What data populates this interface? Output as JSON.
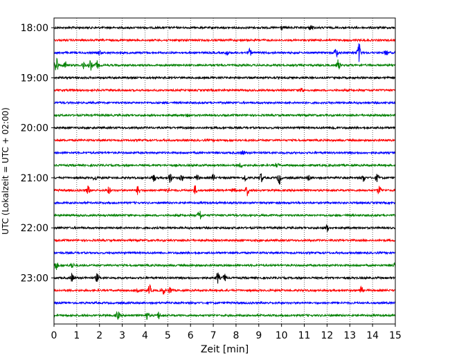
{
  "chart_data": {
    "type": "line",
    "title": "",
    "xlabel": "Zeit  [min]",
    "ylabel": "UTC (Lokalzeit = UTC + 02:00)",
    "xlim": [
      0,
      15
    ],
    "x_ticks": [
      0,
      1,
      2,
      3,
      4,
      5,
      6,
      7,
      8,
      9,
      10,
      11,
      12,
      13,
      14,
      15
    ],
    "y_tick_labels": [
      "18:00",
      "19:00",
      "20:00",
      "21:00",
      "22:00",
      "23:00"
    ],
    "grid": "vertical-dotted",
    "color_cycle": [
      "#000000",
      "#ff0000",
      "#0000ff",
      "#008000"
    ],
    "series": [
      {
        "start": "18:00",
        "bursts": [
          [
            10.0,
            3
          ],
          [
            11.3,
            5
          ]
        ]
      },
      {
        "start": "18:15",
        "bursts": []
      },
      {
        "start": "18:30",
        "bursts": [
          [
            2.0,
            3
          ],
          [
            7.6,
            3
          ],
          [
            8.6,
            5
          ],
          [
            12.4,
            7
          ],
          [
            13.4,
            14
          ],
          [
            14.6,
            4
          ]
        ]
      },
      {
        "start": "18:45",
        "bursts": [
          [
            0.1,
            14
          ],
          [
            0.5,
            5
          ],
          [
            1.3,
            5
          ],
          [
            1.6,
            7
          ],
          [
            1.9,
            6
          ],
          [
            12.5,
            8
          ]
        ]
      },
      {
        "start": "19:00",
        "bursts": []
      },
      {
        "start": "19:15",
        "bursts": [
          [
            10.9,
            4
          ]
        ]
      },
      {
        "start": "19:30",
        "bursts": []
      },
      {
        "start": "19:45",
        "bursts": [
          [
            5.9,
            3
          ]
        ]
      },
      {
        "start": "20:00",
        "bursts": [
          [
            12.3,
            3
          ]
        ]
      },
      {
        "start": "20:15",
        "bursts": []
      },
      {
        "start": "20:30",
        "bursts": [
          [
            8.3,
            3
          ]
        ]
      },
      {
        "start": "20:45",
        "bursts": [
          [
            8.2,
            3
          ],
          [
            9.8,
            3
          ]
        ]
      },
      {
        "start": "21:00",
        "bursts": [
          [
            1.8,
            4
          ],
          [
            4.4,
            5
          ],
          [
            5.1,
            8
          ],
          [
            5.6,
            5
          ],
          [
            6.3,
            4
          ],
          [
            7.0,
            5
          ],
          [
            8.4,
            5
          ],
          [
            9.1,
            7
          ],
          [
            9.9,
            9
          ],
          [
            11.2,
            4
          ],
          [
            13.6,
            5
          ],
          [
            14.2,
            5
          ]
        ]
      },
      {
        "start": "21:15",
        "bursts": [
          [
            1.5,
            6
          ],
          [
            2.4,
            5
          ],
          [
            3.7,
            7
          ],
          [
            5.0,
            5
          ],
          [
            6.2,
            6
          ],
          [
            7.9,
            5
          ],
          [
            8.5,
            7
          ],
          [
            14.3,
            6
          ]
        ]
      },
      {
        "start": "21:30",
        "bursts": []
      },
      {
        "start": "21:45",
        "bursts": [
          [
            6.4,
            9
          ]
        ]
      },
      {
        "start": "22:00",
        "bursts": [
          [
            12.0,
            5
          ]
        ]
      },
      {
        "start": "22:15",
        "bursts": []
      },
      {
        "start": "22:30",
        "bursts": []
      },
      {
        "start": "22:45",
        "bursts": [
          [
            0.1,
            6
          ],
          [
            0.8,
            4
          ],
          [
            15.0,
            5
          ]
        ]
      },
      {
        "start": "23:00",
        "bursts": [
          [
            0.8,
            6
          ],
          [
            1.9,
            6
          ],
          [
            7.2,
            8
          ],
          [
            7.5,
            5
          ]
        ]
      },
      {
        "start": "23:15",
        "bursts": [
          [
            3.7,
            5
          ],
          [
            4.2,
            7
          ],
          [
            4.8,
            6
          ],
          [
            5.1,
            5
          ],
          [
            13.5,
            5
          ]
        ]
      },
      {
        "start": "23:30",
        "bursts": []
      },
      {
        "start": "23:45",
        "bursts": [
          [
            2.8,
            6
          ],
          [
            4.1,
            5
          ],
          [
            4.6,
            5
          ]
        ]
      }
    ]
  }
}
